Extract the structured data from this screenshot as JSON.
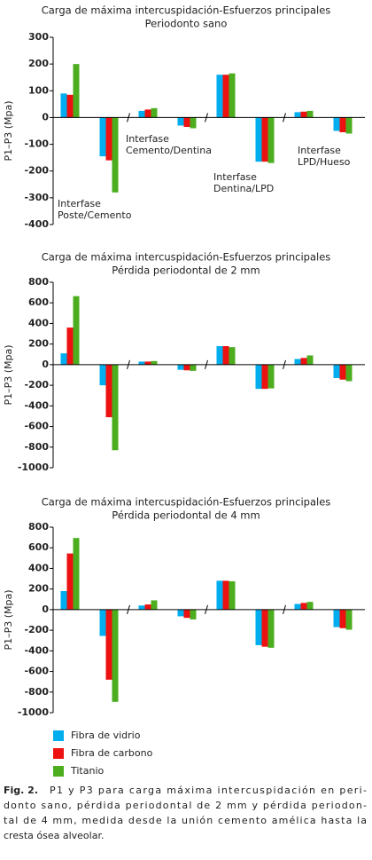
{
  "chart_data": [
    {
      "type": "bar",
      "title": "Carga de máxima intercuspidación-Esfuerzos principales",
      "subtitle": "Periodonto sano",
      "y_label": "P1–P3 (Mpa)",
      "categories": [
        null,
        null,
        null,
        null,
        null,
        null,
        null,
        null
      ],
      "ylim": [
        -400,
        300
      ],
      "yticks": [
        300,
        200,
        100,
        0,
        -100,
        -200,
        -300,
        -400
      ],
      "series": [
        {
          "color": "#00aeef",
          "values": [
            90,
            -145,
            25,
            -30,
            160,
            -165,
            20,
            -50
          ]
        },
        {
          "color": "#ee1111",
          "values": [
            85,
            -160,
            30,
            -35,
            160,
            -165,
            22,
            -55
          ]
        },
        {
          "color": "#4cae1e",
          "values": [
            200,
            -280,
            35,
            -40,
            165,
            -170,
            25,
            -60
          ]
        }
      ],
      "annotations": [
        {
          "lines": [
            "Interfase",
            "Poste/Cemento"
          ]
        },
        {
          "lines": [
            "Interfase",
            "Cemento/Dentina"
          ]
        },
        {
          "lines": [
            "Interfase",
            "Dentina/LPD"
          ]
        },
        {
          "lines": [
            "Interfase",
            "LPD/Hueso"
          ]
        }
      ]
    },
    {
      "type": "bar",
      "title": "Carga de máxima intercuspidación-Esfuerzos principales",
      "subtitle": "Pérdida periodontal de 2 mm",
      "y_label": "P1–P3 (Mpa)",
      "categories": [
        null,
        null,
        null,
        null,
        null,
        null,
        null,
        null
      ],
      "ylim": [
        -1000,
        800
      ],
      "yticks": [
        800,
        600,
        400,
        200,
        0,
        -200,
        -400,
        -600,
        -800,
        -1000
      ],
      "series": [
        {
          "color": "#00aeef",
          "values": [
            110,
            -200,
            30,
            -50,
            180,
            -235,
            55,
            -130
          ]
        },
        {
          "color": "#ee1111",
          "values": [
            360,
            -510,
            30,
            -55,
            180,
            -235,
            65,
            -145
          ]
        },
        {
          "color": "#4cae1e",
          "values": [
            665,
            -830,
            35,
            -60,
            170,
            -230,
            90,
            -160
          ]
        }
      ]
    },
    {
      "type": "bar",
      "title": "Carga de máxima intercuspidación-Esfuerzos principales",
      "subtitle": "Pérdida periodontal de 4 mm",
      "y_label": "P1–P3 (Mpa)",
      "categories": [
        null,
        null,
        null,
        null,
        null,
        null,
        null,
        null
      ],
      "ylim": [
        -1000,
        800
      ],
      "yticks": [
        800,
        600,
        400,
        200,
        0,
        -200,
        -400,
        -600,
        -800,
        -1000
      ],
      "series": [
        {
          "name": "Fibra de vidrio",
          "color": "#00aeef",
          "values": [
            180,
            -255,
            40,
            -65,
            280,
            -345,
            55,
            -170
          ]
        },
        {
          "name": "Fibra de carbono",
          "color": "#ee1111",
          "values": [
            545,
            -680,
            50,
            -80,
            280,
            -360,
            65,
            -180
          ]
        },
        {
          "name": "Titanio",
          "color": "#4cae1e",
          "values": [
            695,
            -895,
            90,
            -95,
            275,
            -370,
            75,
            -195
          ]
        }
      ]
    }
  ],
  "caption": {
    "label": "Fig. 2.",
    "lines": [
      "P1 y P3 para carga máxima intercuspidación en peri-",
      "donto sano, pérdida periodontal de 2 mm y pérdida periodon-",
      "tal de 4 mm, medida desde la unión cemento amélica hasta la",
      "cresta ósea alveolar."
    ]
  }
}
